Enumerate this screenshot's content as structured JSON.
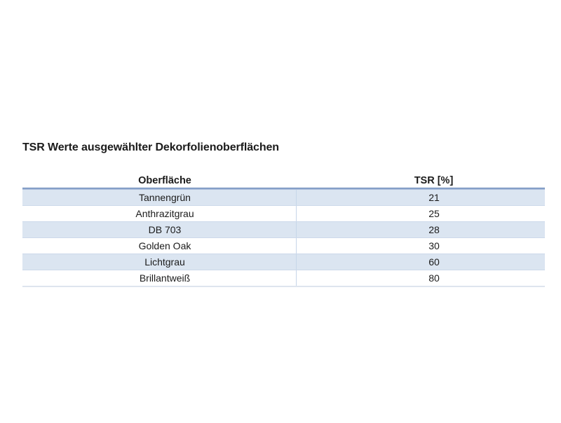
{
  "page": {
    "background": "#ffffff"
  },
  "title": "TSR Werte ausgewählter Dekorfolienoberflächen",
  "table": {
    "headers": [
      "Oberfläche",
      "TSR [%]"
    ],
    "rows": [
      [
        "Tannengrün",
        "21"
      ],
      [
        "Anthrazitgrau",
        "25"
      ],
      [
        "DB 703",
        "28"
      ],
      [
        "Golden Oak",
        "30"
      ],
      [
        "Lichtgrau",
        "60"
      ],
      [
        "Brillantweiß",
        "80"
      ]
    ],
    "colors": {
      "band_fill": "#dbe5f1",
      "header_border_dark": "#5a7db1",
      "header_border_light": "#a4b8d8",
      "row_divider": "#ccd9ea",
      "column_divider": "#c7d6e9",
      "bottom_border": "#dee5ee"
    }
  },
  "chart_data": {
    "type": "table",
    "title": "TSR Werte ausgewählter Dekorfolienoberflächen",
    "columns": [
      "Oberfläche",
      "TSR [%]"
    ],
    "rows": [
      [
        "Tannengrün",
        21
      ],
      [
        "Anthrazitgrau",
        25
      ],
      [
        "DB 703",
        28
      ],
      [
        "Golden Oak",
        30
      ],
      [
        "Lichtgrau",
        60
      ],
      [
        "Brillantweiß",
        80
      ]
    ]
  }
}
